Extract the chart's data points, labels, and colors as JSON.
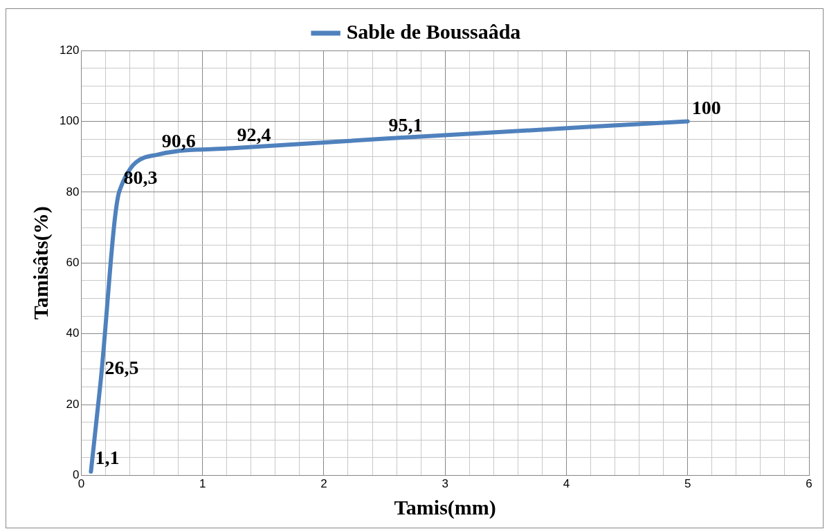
{
  "chart_data": {
    "type": "line",
    "xlabel": "Tamis(mm)",
    "ylabel": "Tamisâts(%)",
    "x": [
      0.08,
      0.16,
      0.315,
      0.63,
      1.25,
      2.5,
      5
    ],
    "series": [
      {
        "name": "Sable de Boussaâda",
        "color": "#4f81bd",
        "values": [
          1.1,
          26.5,
          80.3,
          90.6,
          92.4,
          95.1,
          100
        ],
        "value_labels": [
          "1,1",
          "26,5",
          "80,3",
          "90,6",
          "92,4",
          "95,1",
          "100"
        ]
      }
    ],
    "xlim": [
      0,
      6
    ],
    "xticks": [
      0,
      {
        "value": 0.2,
        "label": null
      },
      {
        "value": 0.4,
        "label": null
      },
      {
        "value": 0.6,
        "label": null
      },
      {
        "value": 0.8,
        "label": null
      },
      1,
      {
        "value": 1.2,
        "label": null
      },
      {
        "value": 1.4,
        "label": null
      },
      {
        "value": 1.6,
        "label": null
      },
      {
        "value": 1.8,
        "label": null
      },
      2,
      {
        "value": 2.2,
        "label": null
      },
      {
        "value": 2.4,
        "label": null
      },
      {
        "value": 2.6,
        "label": null
      },
      {
        "value": 2.8,
        "label": null
      },
      3,
      {
        "value": 3.2,
        "label": null
      },
      {
        "value": 3.4,
        "label": null
      },
      {
        "value": 3.6,
        "label": null
      },
      {
        "value": 3.8,
        "label": null
      },
      4,
      {
        "value": 4.2,
        "label": null
      },
      {
        "value": 4.4,
        "label": null
      },
      {
        "value": 4.6,
        "label": null
      },
      {
        "value": 4.8,
        "label": null
      },
      5,
      {
        "value": 5.2,
        "label": null
      },
      {
        "value": 5.4,
        "label": null
      },
      {
        "value": 5.6,
        "label": null
      },
      {
        "value": 5.8,
        "label": null
      },
      6
    ],
    "ylim": [
      0,
      120
    ],
    "yticks": [
      0,
      {
        "value": 5,
        "label": null
      },
      {
        "value": 10,
        "label": null
      },
      {
        "value": 15,
        "label": null
      },
      20,
      {
        "value": 25,
        "label": null
      },
      {
        "value": 30,
        "label": null
      },
      {
        "value": 35,
        "label": null
      },
      40,
      {
        "value": 45,
        "label": null
      },
      {
        "value": 50,
        "label": null
      },
      {
        "value": 55,
        "label": null
      },
      60,
      {
        "value": 65,
        "label": null
      },
      {
        "value": 70,
        "label": null
      },
      {
        "value": 75,
        "label": null
      },
      80,
      {
        "value": 85,
        "label": null
      },
      {
        "value": 90,
        "label": null
      },
      {
        "value": 95,
        "label": null
      },
      100,
      {
        "value": 105,
        "label": null
      },
      {
        "value": 110,
        "label": null
      },
      {
        "value": 115,
        "label": null
      },
      120
    ],
    "grid": true,
    "legend": "top",
    "marker": "none",
    "line_style": "solid"
  }
}
